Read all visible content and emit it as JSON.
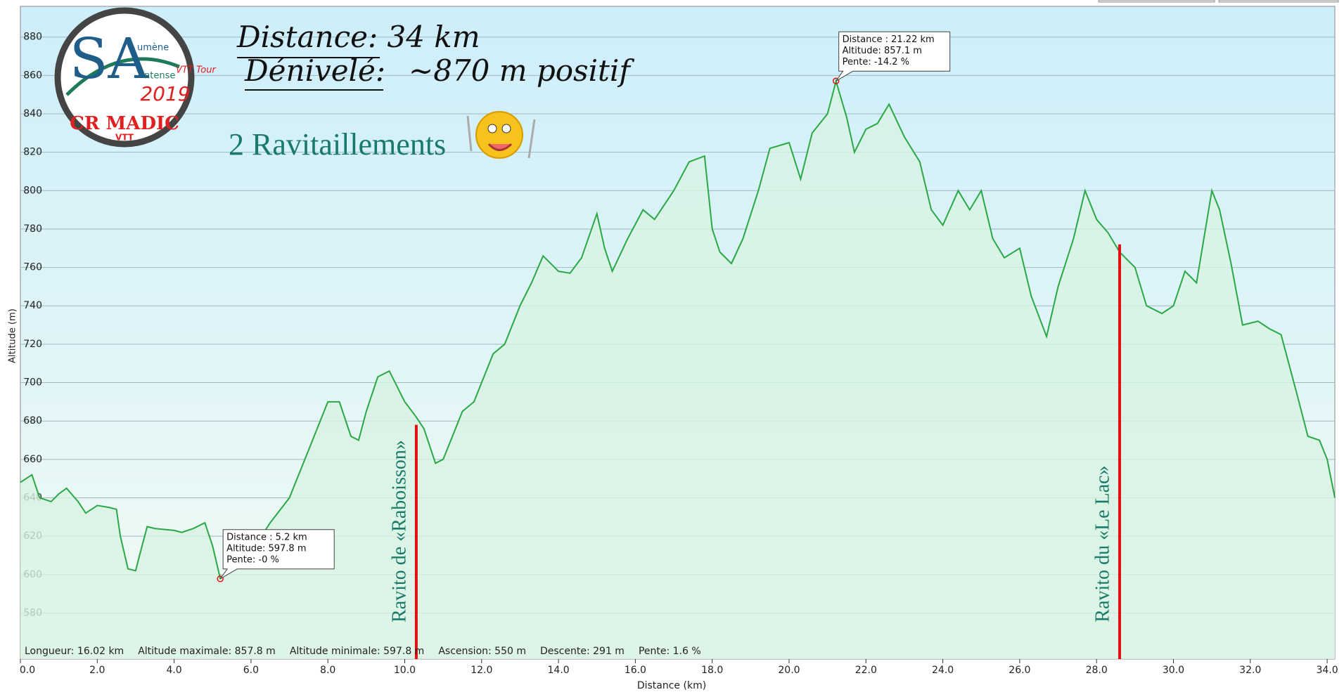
{
  "chart_data": {
    "type": "area",
    "color": "#2aa845",
    "fill": "#d8f3e2",
    "grid": true,
    "x_label": "Distance   (km)",
    "y_label": "Altitude (m)",
    "x": [
      0.0,
      0.3,
      0.5,
      0.8,
      1.0,
      1.2,
      1.5,
      1.7,
      2.0,
      2.3,
      2.5,
      2.6,
      2.8,
      3.0,
      3.1,
      3.3,
      3.5,
      4.0,
      4.2,
      4.5,
      4.8,
      5.0,
      5.2,
      5.5,
      6.0,
      6.5,
      7.0,
      7.5,
      7.8,
      8.0,
      8.3,
      8.6,
      8.8,
      9.0,
      9.3,
      9.6,
      10.0,
      10.3,
      10.5,
      10.8,
      11.0,
      11.2,
      11.5,
      11.8,
      12.0,
      12.3,
      12.6,
      13.0,
      13.3,
      13.6,
      14.0,
      14.3,
      14.6,
      15.0,
      15.2,
      15.4,
      15.8,
      16.2,
      16.5,
      17.0,
      17.4,
      17.8,
      18.0,
      18.2,
      18.5,
      18.8,
      19.2,
      19.5,
      20.0,
      20.3,
      20.6,
      21.0,
      21.22,
      21.5,
      21.7,
      22.0,
      22.3,
      22.6,
      23.0,
      23.4,
      23.7,
      24.0,
      24.4,
      24.7,
      25.0,
      25.3,
      25.6,
      26.0,
      26.3,
      26.7,
      27.0,
      27.4,
      27.7,
      28.0,
      28.3,
      28.6,
      29.0,
      29.3,
      29.7,
      30.0,
      30.3,
      30.6,
      31.0,
      31.2,
      31.5,
      31.8,
      32.2,
      32.5,
      32.8,
      33.2,
      33.5,
      33.8,
      34.0,
      34.2
    ],
    "values": [
      648,
      652,
      640,
      638,
      642,
      645,
      638,
      632,
      636,
      635,
      634,
      620,
      603,
      602,
      610,
      625,
      624,
      623,
      622,
      624,
      627,
      615,
      598,
      602,
      612,
      627,
      640,
      665,
      680,
      690,
      690,
      672,
      670,
      685,
      703,
      706,
      690,
      682,
      676,
      658,
      660,
      670,
      685,
      690,
      700,
      715,
      720,
      740,
      752,
      766,
      758,
      757,
      765,
      788,
      770,
      758,
      775,
      790,
      785,
      800,
      815,
      818,
      780,
      768,
      762,
      775,
      800,
      822,
      825,
      806,
      830,
      840,
      857,
      838,
      820,
      832,
      835,
      845,
      828,
      815,
      790,
      782,
      800,
      790,
      800,
      775,
      765,
      770,
      745,
      724,
      750,
      775,
      800,
      785,
      778,
      768,
      760,
      740,
      736,
      740,
      758,
      752,
      800,
      790,
      762,
      730,
      732,
      728,
      725,
      695,
      672,
      670,
      660,
      640
    ],
    "xlim": [
      0,
      34.2
    ],
    "ylim": [
      556,
      896
    ],
    "xticks": [
      {
        "value": 0,
        "label": "0.0"
      },
      {
        "value": 2,
        "label": "2.0"
      },
      {
        "value": 4,
        "label": "4.0"
      },
      {
        "value": 6,
        "label": "6.0"
      },
      {
        "value": 8,
        "label": "8.0"
      },
      {
        "value": 10,
        "label": "10.0"
      },
      {
        "value": 12,
        "label": "12.0"
      },
      {
        "value": 14,
        "label": "14.0"
      },
      {
        "value": 16,
        "label": "16.0"
      },
      {
        "value": 18,
        "label": "18.0"
      },
      {
        "value": 20,
        "label": "20.0"
      },
      {
        "value": 22,
        "label": "22.0"
      },
      {
        "value": 24,
        "label": "24.0"
      },
      {
        "value": 26,
        "label": "26.0"
      },
      {
        "value": 28,
        "label": "28.0"
      },
      {
        "value": 30,
        "label": "30.0"
      },
      {
        "value": 32,
        "label": "32.0"
      },
      {
        "value": 34,
        "label": "34.0"
      }
    ],
    "yticks": [
      580,
      600,
      620,
      640,
      660,
      680,
      700,
      720,
      740,
      760,
      780,
      800,
      820,
      840,
      860,
      880
    ],
    "title_lines": [
      "Distance:  34 km",
      "Dénivelé:",
      "~870 m positif"
    ],
    "subtitle": "2 Ravitaillements",
    "logo": {
      "main": "CR MADIC",
      "sub": "VTT",
      "year": "2019",
      "words": [
        "umène",
        "ntense",
        "VTT Tour"
      ]
    },
    "ravitos": [
      {
        "label": "Ravito  de «Raboisson»",
        "x": 10.3,
        "y": 678
      },
      {
        "label": "Ravito  du «Le Lac»",
        "x": 28.6,
        "y": 772
      }
    ],
    "tooltips": [
      {
        "x": 21.22,
        "y": 857.1,
        "lines": [
          "Distance  : 21.22 km",
          "Altitude: 857.1 m",
          "Pente: -14.2 %"
        ]
      },
      {
        "x": 5.2,
        "y": 597.8,
        "lines": [
          "Distance  : 5.2 km",
          "Altitude: 597.8 m",
          "Pente: -0 %"
        ]
      }
    ],
    "stats": [
      "Longueur: 16.02 km",
      "Altitude maximale: 857.8 m",
      "Altitude minimale: 597.8 m",
      "Ascension: 550 m",
      "Descente: 291 m",
      "Pente: 1.6 %"
    ]
  }
}
